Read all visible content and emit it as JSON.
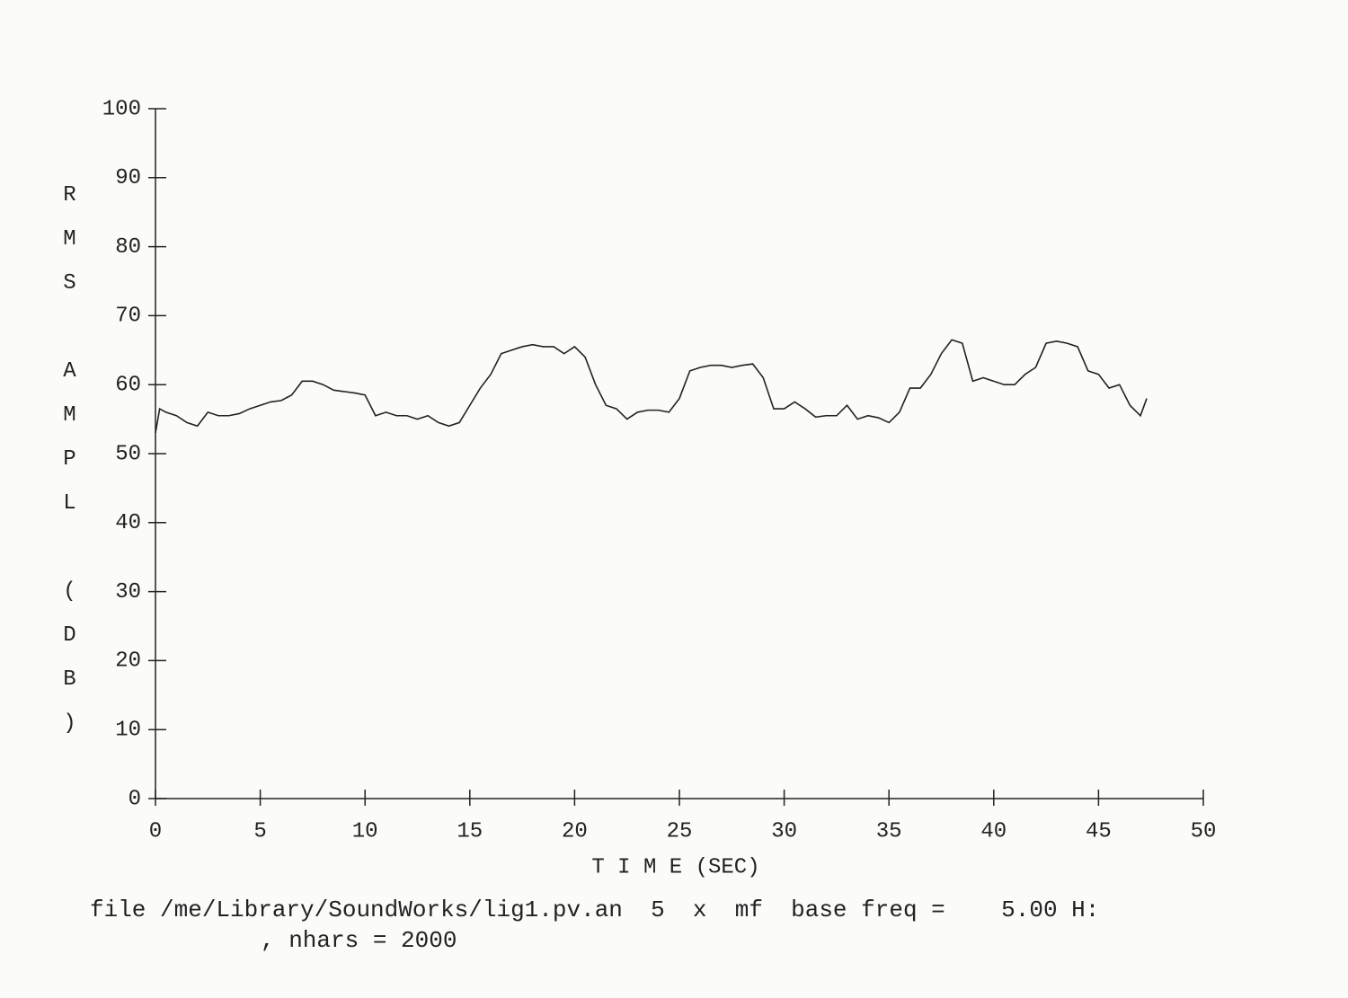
{
  "chart_data": {
    "type": "line",
    "xlabel": "T I M E (SEC)",
    "ylabel": "RMS AMPL (DB)",
    "annotations": [
      "file /me/Library/SoundWorks/lig1.pv.an  5  x  mf  base freq =    5.00 H:",
      ", nhars = 2000"
    ],
    "x": [
      0,
      0.2,
      0.5,
      1,
      1.5,
      2,
      2.5,
      3,
      3.5,
      4,
      4.5,
      5,
      5.5,
      6,
      6.5,
      7,
      7.5,
      8,
      8.5,
      9,
      9.5,
      10,
      10.5,
      11,
      11.5,
      12,
      12.5,
      13,
      13.5,
      14,
      14.5,
      15,
      15.5,
      16,
      16.5,
      17,
      17.5,
      18,
      18.5,
      19,
      19.5,
      20,
      20.5,
      21,
      21.5,
      22,
      22.5,
      23,
      23.5,
      24,
      24.5,
      25,
      25.5,
      26,
      26.5,
      27,
      27.5,
      28,
      28.5,
      29,
      29.5,
      30,
      30.5,
      31,
      31.5,
      32,
      32.5,
      33,
      33.5,
      34,
      34.5,
      35,
      35.5,
      36,
      36.5,
      37,
      37.5,
      38,
      38.5,
      39,
      39.5,
      40,
      40.5,
      41,
      41.5,
      42,
      42.5,
      43,
      43.5,
      44,
      44.5,
      45,
      45.5,
      46,
      46.5,
      47,
      47.3
    ],
    "series": [
      {
        "color": "#222222",
        "values": [
          53,
          56.5,
          56,
          55.5,
          54.5,
          54,
          56,
          55.5,
          55.5,
          55.8,
          56.5,
          57,
          57.5,
          57.7,
          58.5,
          60.5,
          60.5,
          60,
          59.2,
          59,
          58.8,
          58.5,
          55.5,
          56,
          55.5,
          55.5,
          55,
          55.5,
          54.5,
          54,
          54.5,
          57,
          59.5,
          61.5,
          64.5,
          65,
          65.5,
          65.8,
          65.5,
          65.5,
          64.5,
          65.5,
          64,
          60,
          57,
          56.5,
          55,
          56,
          56.3,
          56.3,
          56,
          58,
          62,
          62.5,
          62.8,
          62.8,
          62.5,
          62.8,
          63,
          61,
          56.5,
          56.5,
          57.5,
          56.5,
          55.3,
          55.5,
          55.5,
          57,
          55,
          55.5,
          55.2,
          54.5,
          56,
          59.5,
          59.5,
          61.5,
          64.5,
          66.5,
          66,
          60.5,
          61,
          60.5,
          60,
          60,
          61.5,
          62.5,
          66,
          66.3,
          66,
          65.5,
          62,
          61.5,
          59.5,
          60,
          57,
          55.5,
          58
        ]
      }
    ],
    "xlim": [
      0,
      50
    ],
    "xticks": [
      0,
      5,
      10,
      15,
      20,
      25,
      30,
      35,
      40,
      45,
      50
    ],
    "ylim": [
      0,
      100
    ],
    "yticks": [
      0,
      10,
      20,
      30,
      40,
      50,
      60,
      70,
      80,
      90,
      100
    ],
    "grid": false
  }
}
